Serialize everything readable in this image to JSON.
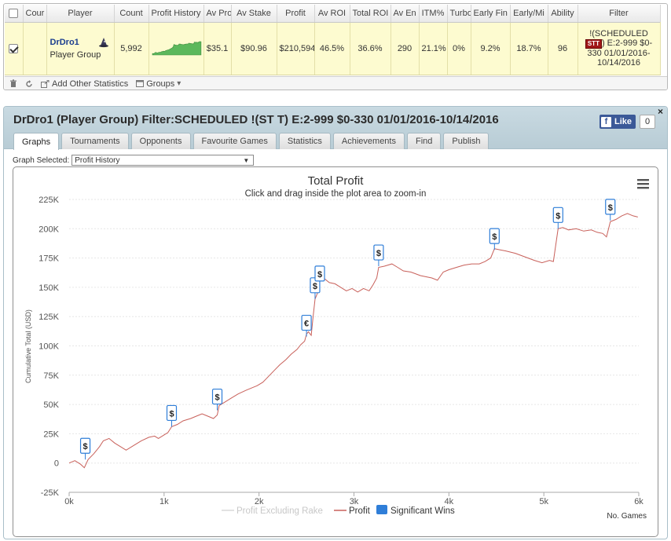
{
  "table": {
    "headers": [
      "Cour",
      "Player",
      "Count",
      "Profit History",
      "Av Pro",
      "Av Stake",
      "Profit",
      "Av ROI",
      "Total ROI",
      "Av En",
      "ITM%",
      "Turbo",
      "Early Fin",
      "Early/Mi",
      "Ability",
      "Filter"
    ],
    "row": {
      "checked": true,
      "player_name": "DrDro1",
      "player_group": "Player Group",
      "count": "5,992",
      "av_profit": "$35.1",
      "av_stake": "$90.96",
      "profit": "$210,594",
      "av_roi": "46.5%",
      "total_roi": "36.6%",
      "av_entrants": "290",
      "itm": "21.1%",
      "turbo": "0%",
      "early_finish": "9.2%",
      "early_mid": "18.7%",
      "ability": "96",
      "filter_pre": "!(SCHEDULED",
      "filter_badge": "STT",
      "filter_post": ") E:2-999 $0-330 01/01/2016-10/14/2016",
      "remove": "x"
    }
  },
  "toolbar": {
    "add_stats": "Add Other Statistics",
    "groups": "Groups"
  },
  "main": {
    "title": "DrDro1 (Player Group) Filter:SCHEDULED !(ST T) E:2-999 $0-330 01/01/2016-10/14/2016",
    "fb_like": "Like",
    "fb_count": "0",
    "close": "×",
    "tabs": [
      "Graphs",
      "Tournaments",
      "Opponents",
      "Favourite Games",
      "Statistics",
      "Achievements",
      "Find",
      "Publish"
    ],
    "graph_selected_label": "Graph Selected:",
    "graph_selected_value": "Profit History"
  },
  "chart_data": {
    "type": "line",
    "title": "Total Profit",
    "subtitle": "Click and drag inside the plot area to zoom-in",
    "xlabel": "No. Games",
    "ylabel": "Cumulative Total (USD)",
    "xlim": [
      0,
      6000
    ],
    "ylim": [
      -25000,
      225000
    ],
    "x_ticks": [
      "0k",
      "1k",
      "2k",
      "3k",
      "4k",
      "5k",
      "6k"
    ],
    "y_ticks": [
      "-25K",
      "0",
      "25K",
      "50K",
      "75K",
      "100K",
      "125K",
      "150K",
      "175K",
      "200K",
      "225K"
    ],
    "grid": true,
    "legend_position": "bottom",
    "legend": [
      "Profit Excluding Rake",
      "Profit",
      "Significant Wins"
    ],
    "colors": {
      "profit": "#c8605a",
      "excl_rake": "#d8d8d8",
      "wins": "#2f7ed8"
    },
    "series": [
      {
        "name": "Profit",
        "points": [
          [
            0,
            0
          ],
          [
            60,
            2000
          ],
          [
            120,
            -1000
          ],
          [
            160,
            -4000
          ],
          [
            200,
            3000
          ],
          [
            260,
            8000
          ],
          [
            320,
            14000
          ],
          [
            360,
            19000
          ],
          [
            420,
            21000
          ],
          [
            480,
            17000
          ],
          [
            540,
            14000
          ],
          [
            600,
            11000
          ],
          [
            680,
            15000
          ],
          [
            760,
            19000
          ],
          [
            840,
            22000
          ],
          [
            900,
            23000
          ],
          [
            940,
            21000
          ],
          [
            1000,
            24000
          ],
          [
            1040,
            26000
          ],
          [
            1080,
            31000
          ],
          [
            1140,
            33000
          ],
          [
            1200,
            36000
          ],
          [
            1280,
            38000
          ],
          [
            1340,
            40000
          ],
          [
            1400,
            42000
          ],
          [
            1460,
            40000
          ],
          [
            1520,
            38000
          ],
          [
            1560,
            41000
          ],
          [
            1580,
            49000
          ],
          [
            1640,
            52000
          ],
          [
            1700,
            55000
          ],
          [
            1780,
            59000
          ],
          [
            1860,
            62000
          ],
          [
            1920,
            64000
          ],
          [
            1980,
            66000
          ],
          [
            2040,
            69000
          ],
          [
            2100,
            74000
          ],
          [
            2160,
            79000
          ],
          [
            2220,
            84000
          ],
          [
            2280,
            88000
          ],
          [
            2340,
            93000
          ],
          [
            2400,
            97000
          ],
          [
            2440,
            101000
          ],
          [
            2480,
            104000
          ],
          [
            2500,
            110000
          ],
          [
            2520,
            112000
          ],
          [
            2550,
            109000
          ],
          [
            2570,
            125000
          ],
          [
            2590,
            140000
          ],
          [
            2620,
            146000
          ],
          [
            2640,
            161000
          ],
          [
            2680,
            158000
          ],
          [
            2740,
            154000
          ],
          [
            2800,
            153000
          ],
          [
            2860,
            150000
          ],
          [
            2920,
            147000
          ],
          [
            2980,
            149000
          ],
          [
            3040,
            146000
          ],
          [
            3100,
            149000
          ],
          [
            3160,
            147000
          ],
          [
            3200,
            152000
          ],
          [
            3240,
            158000
          ],
          [
            3260,
            167000
          ],
          [
            3320,
            168000
          ],
          [
            3400,
            170000
          ],
          [
            3460,
            167000
          ],
          [
            3520,
            164000
          ],
          [
            3600,
            163000
          ],
          [
            3700,
            160000
          ],
          [
            3760,
            159000
          ],
          [
            3820,
            158000
          ],
          [
            3880,
            156000
          ],
          [
            3940,
            163000
          ],
          [
            4000,
            165000
          ],
          [
            4080,
            167000
          ],
          [
            4160,
            169000
          ],
          [
            4240,
            170000
          ],
          [
            4320,
            170000
          ],
          [
            4380,
            172000
          ],
          [
            4440,
            175000
          ],
          [
            4480,
            183000
          ],
          [
            4540,
            182000
          ],
          [
            4600,
            181000
          ],
          [
            4700,
            179000
          ],
          [
            4800,
            176000
          ],
          [
            4900,
            173000
          ],
          [
            4980,
            171000
          ],
          [
            5060,
            173000
          ],
          [
            5100,
            172000
          ],
          [
            5150,
            200000
          ],
          [
            5200,
            201000
          ],
          [
            5260,
            199000
          ],
          [
            5340,
            200000
          ],
          [
            5420,
            198000
          ],
          [
            5500,
            199000
          ],
          [
            5560,
            197000
          ],
          [
            5620,
            196000
          ],
          [
            5660,
            193000
          ],
          [
            5700,
            206000
          ],
          [
            5760,
            208000
          ],
          [
            5820,
            211000
          ],
          [
            5880,
            213000
          ],
          [
            5940,
            211000
          ],
          [
            5990,
            210000
          ]
        ]
      }
    ],
    "significant_wins": [
      {
        "x": 170,
        "y": 3000,
        "symbol": "$"
      },
      {
        "x": 1080,
        "y": 31000,
        "symbol": "$"
      },
      {
        "x": 1560,
        "y": 45000,
        "symbol": "$"
      },
      {
        "x": 2500,
        "y": 108000,
        "symbol": "€"
      },
      {
        "x": 2590,
        "y": 140000,
        "symbol": "$"
      },
      {
        "x": 2640,
        "y": 150000,
        "symbol": "$"
      },
      {
        "x": 3260,
        "y": 168000,
        "symbol": "$"
      },
      {
        "x": 4480,
        "y": 182000,
        "symbol": "$"
      },
      {
        "x": 5150,
        "y": 200000,
        "symbol": "$"
      },
      {
        "x": 5700,
        "y": 207000,
        "symbol": "$"
      }
    ],
    "sparkline_color": "#5cb85c"
  }
}
